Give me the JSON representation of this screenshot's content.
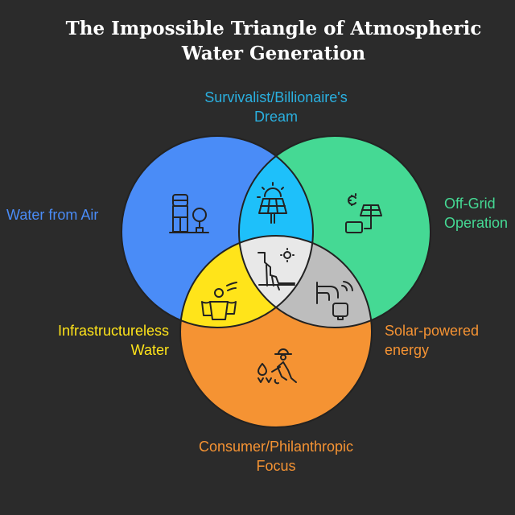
{
  "title": {
    "line1": "The Impossible Triangle of Atmospheric",
    "line2": "Water Generation"
  },
  "sets": {
    "top_overlap": {
      "line1": "Survivalist/Billionaire's",
      "line2": "Dream",
      "color": "#2ab0e0"
    },
    "left_circle": {
      "line1": "Water from Air",
      "color": "#4a8cf7"
    },
    "right_circle": {
      "line1": "Off-Grid",
      "line2": "Operation",
      "color": "#45d994"
    },
    "left_overlap": {
      "line1": "Infrastructureless",
      "line2": "Water",
      "color": "#ffe41a"
    },
    "right_overlap": {
      "line1": "Solar-powered",
      "line2": "energy",
      "color": "#f59333"
    },
    "bottom_circle": {
      "line1": "Consumer/Philanthropic",
      "line2": "Focus",
      "color": "#f59333"
    }
  },
  "colors": {
    "background": "#2b2b2b",
    "blue_circle": "#4a8cf7",
    "green_circle": "#45d994",
    "orange_circle": "#f59333",
    "blue_green_overlap": "#1ec0fa",
    "blue_orange_overlap": "#ffe41a",
    "green_orange_overlap": "#bdbdbd",
    "center_overlap": "#e8e8e8"
  },
  "icons": [
    "water-dispenser-plant-icon",
    "solar-panel-sun-icon",
    "solar-panel-battery-icon",
    "people-cups-icon",
    "cliff-sun-icon",
    "faucet-wifi-icon",
    "farmer-planting-icon"
  ]
}
